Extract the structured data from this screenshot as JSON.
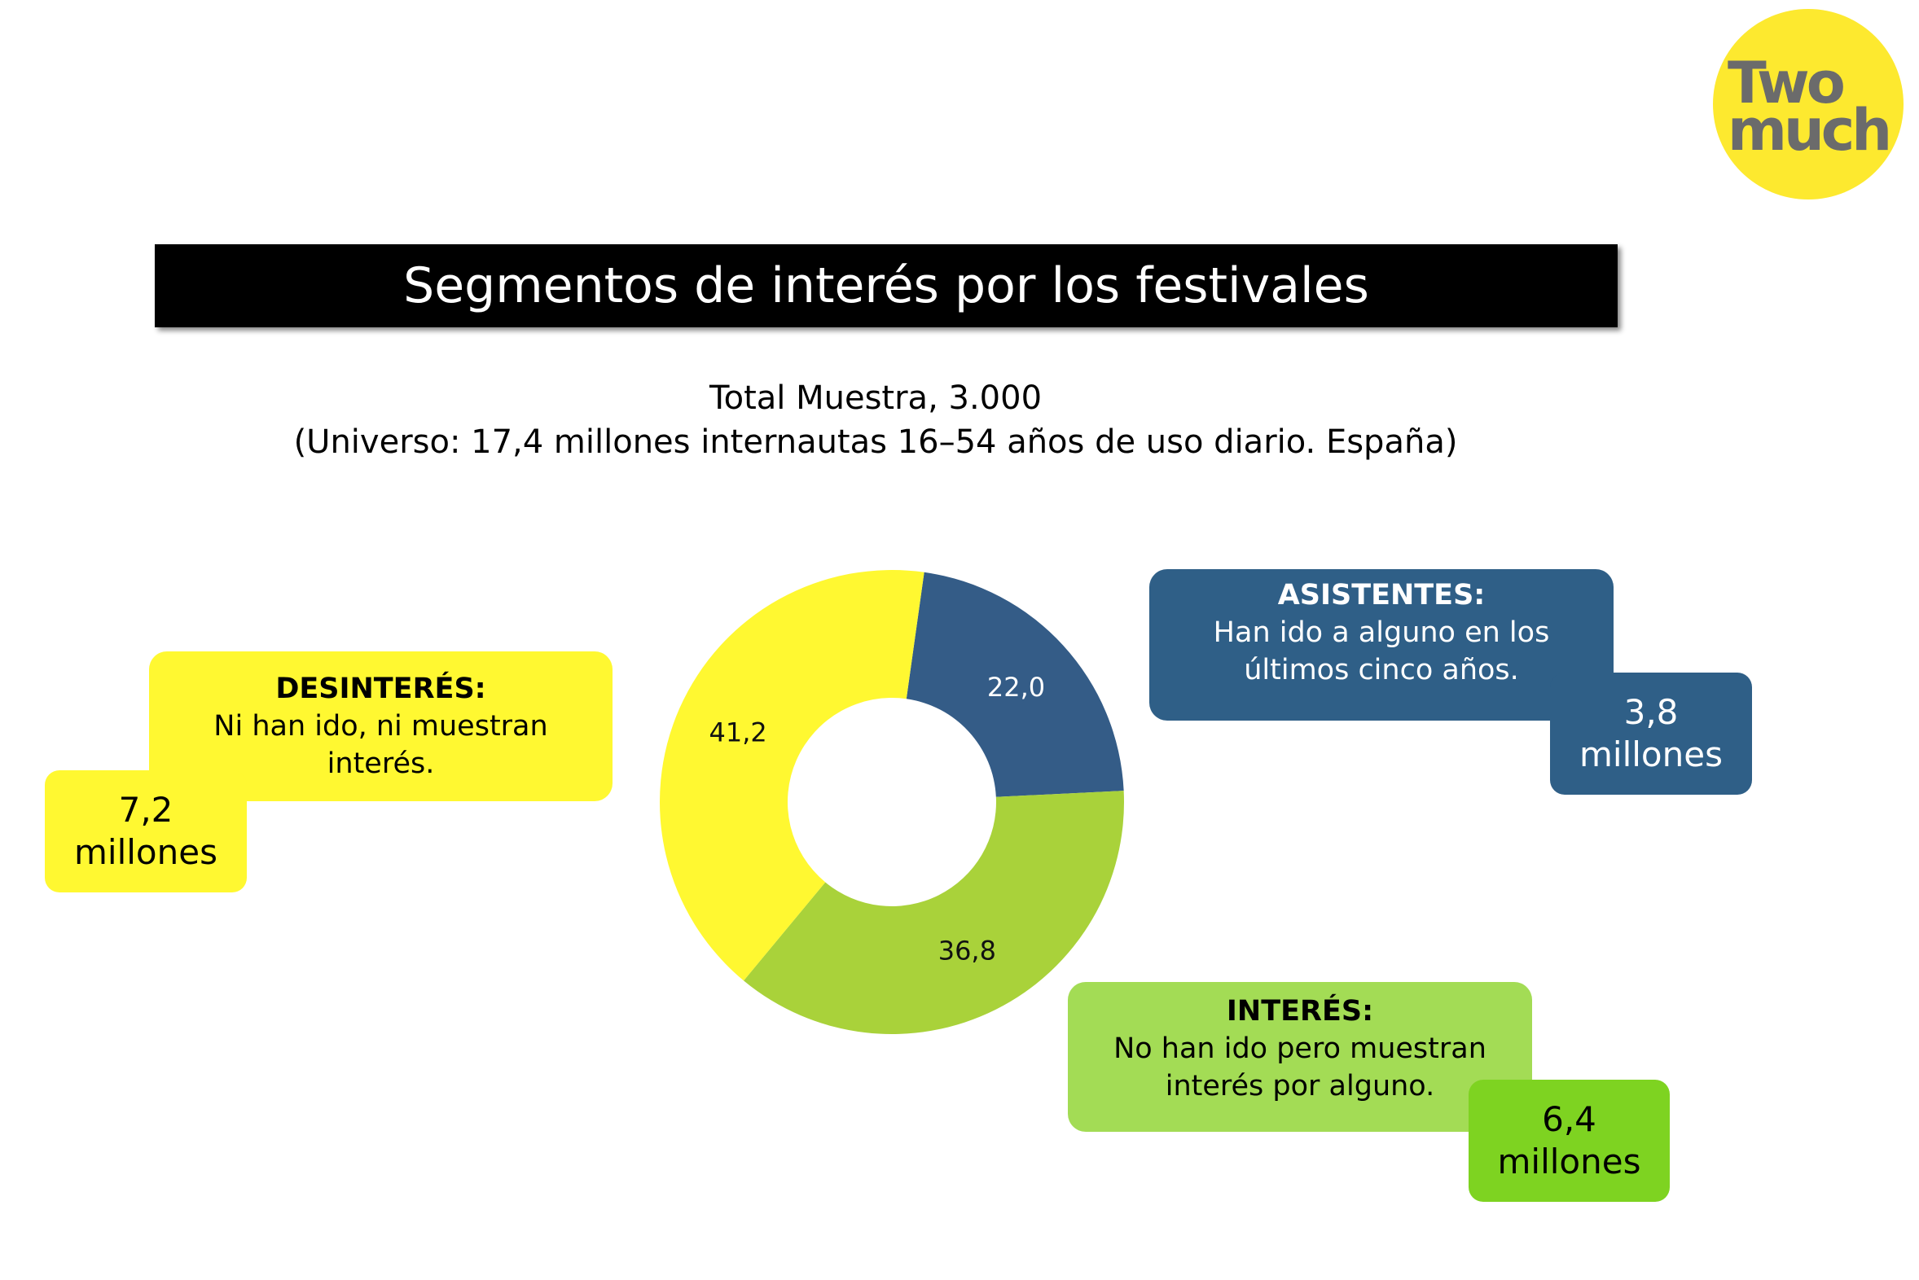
{
  "chart_data": {
    "type": "donut",
    "title": "Segmentos de interés por los festivales",
    "subtitle": [
      "Total Muestra, 3.000",
      "(Universo: 17,4 millones internautas 16–54 años de uso diario. España)"
    ],
    "values": [
      22.0,
      36.8,
      41.2
    ],
    "value_labels": [
      "22,0",
      "36,8",
      "41,2"
    ],
    "colors": [
      "#345c87",
      "#a9d23a",
      "#fff831"
    ]
  },
  "logo": [
    "Two",
    "much"
  ],
  "callouts": [
    {
      "heading": "DESINTERÉS:",
      "text": "Ni han ido, ni muestran interés.",
      "amount": "7,2",
      "unit": "millones"
    },
    {
      "heading": "ASISTENTES:",
      "text": "Han ido a alguno en los últimos cinco años.",
      "amount": "3,8",
      "unit": "millones"
    },
    {
      "heading": "INTERÉS:",
      "text": "No han ido pero muestran interés por alguno.",
      "amount": "6,4",
      "unit": "millones"
    }
  ]
}
